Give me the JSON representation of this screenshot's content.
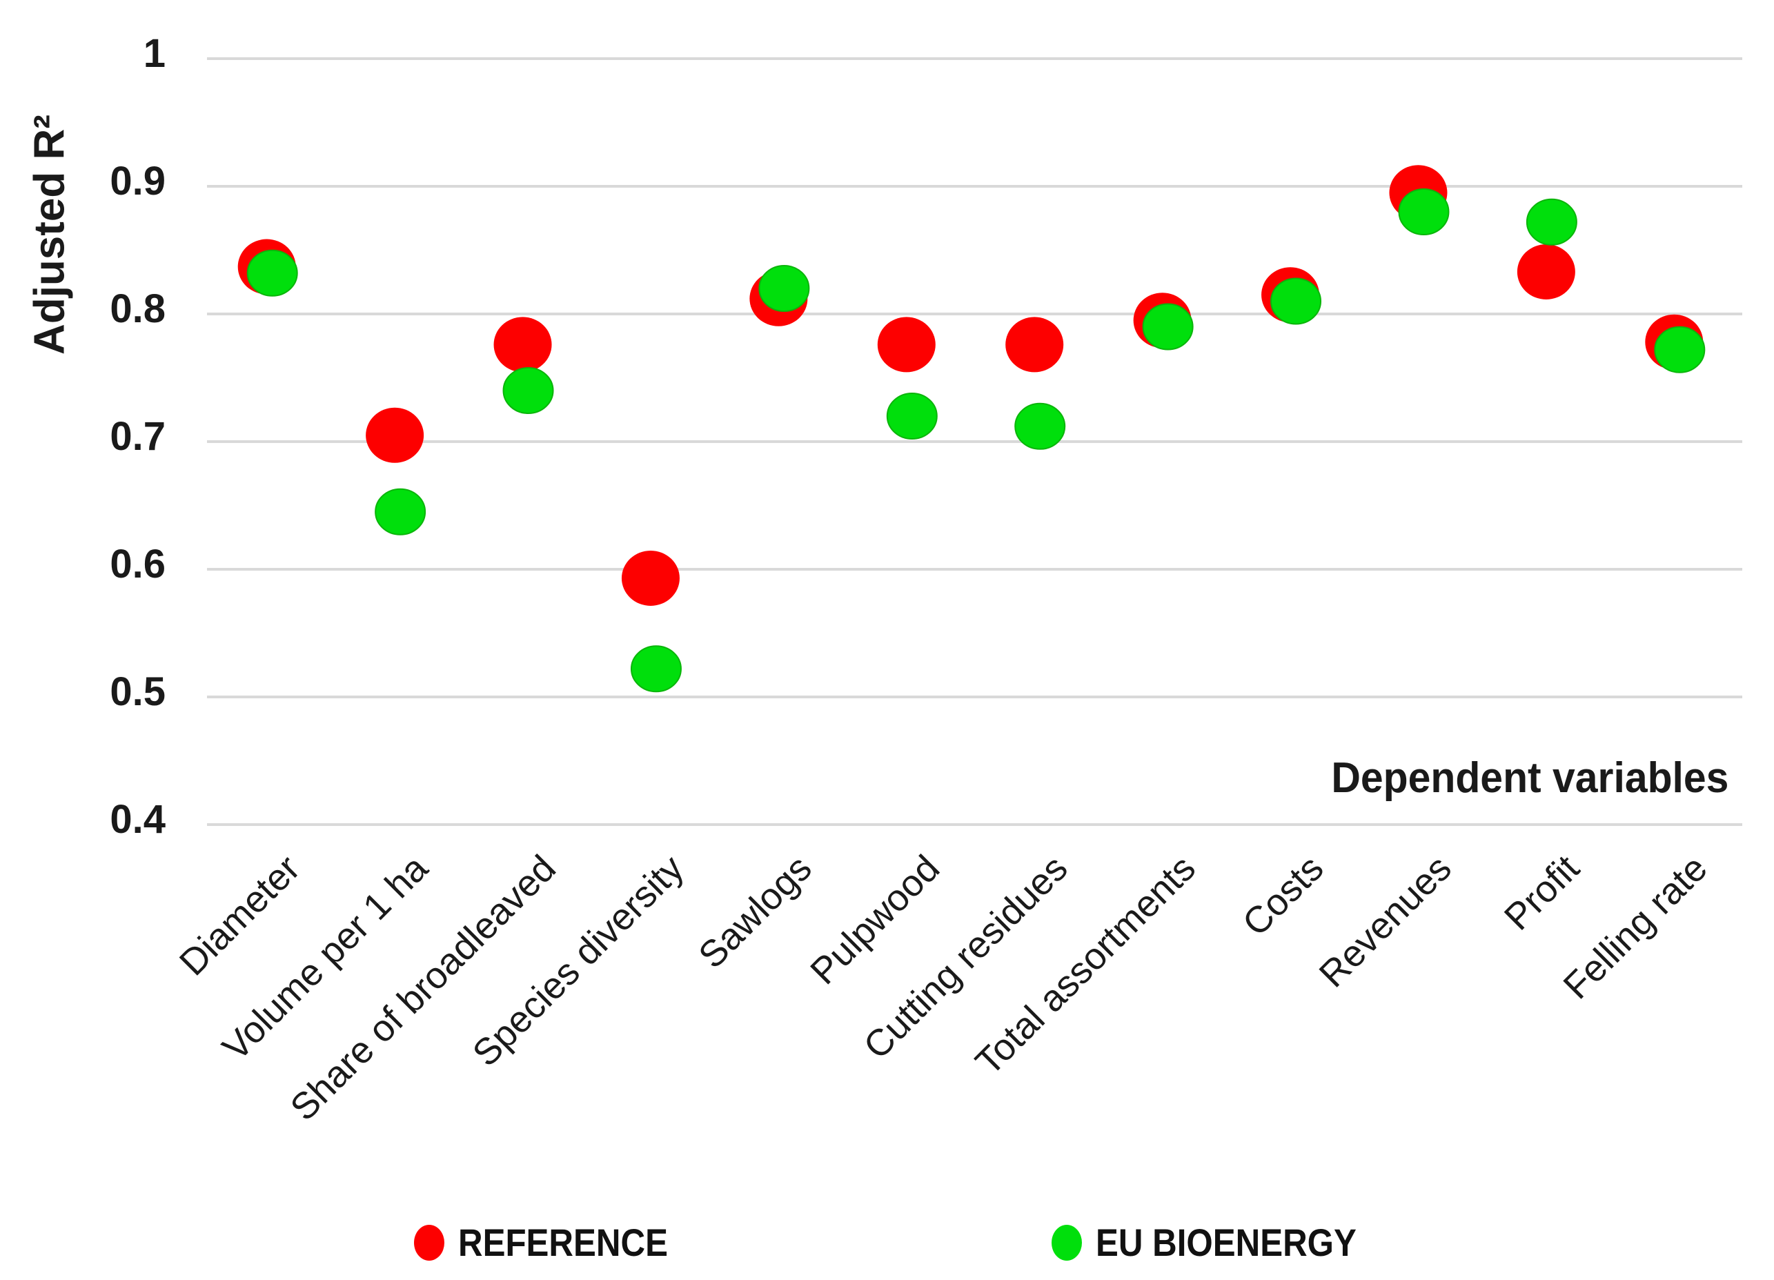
{
  "page": {
    "background_color": "#ffffff",
    "text_color": "#1a1a1a"
  },
  "chart_data": {
    "type": "scatter",
    "title": "",
    "ylabel": "Adjusted R²",
    "xlabel": "Dependent variables",
    "ylim": [
      0.4,
      1.0
    ],
    "yticks": [
      1,
      0.9,
      0.8,
      0.7,
      0.6,
      0.5,
      0.4
    ],
    "yticklabels": [
      "1",
      "0.9",
      "0.8",
      "0.7",
      "0.6",
      "0.5",
      "0.4"
    ],
    "grid": true,
    "gridline_color": "#d9d9d9",
    "legend_position": "bottom",
    "categories": [
      "Diameter",
      "Volume per 1 ha",
      "Share of broadleaved",
      "Species diversity",
      "Sawlogs",
      "Pulpwood",
      "Cutting residues",
      "Total assortments",
      "Costs",
      "Revenues",
      "Profit",
      "Felling rate"
    ],
    "series": [
      {
        "name": "REFERENCE",
        "color": "#fd0000",
        "values": [
          0.837,
          0.705,
          0.776,
          0.593,
          0.812,
          0.776,
          0.776,
          0.795,
          0.815,
          0.895,
          0.833,
          0.778
        ]
      },
      {
        "name": "EU BIOENERGY",
        "color": "#00df0c",
        "values": [
          0.832,
          0.645,
          0.74,
          0.522,
          0.82,
          0.72,
          0.712,
          0.79,
          0.81,
          0.88,
          0.872,
          0.772
        ]
      }
    ]
  }
}
